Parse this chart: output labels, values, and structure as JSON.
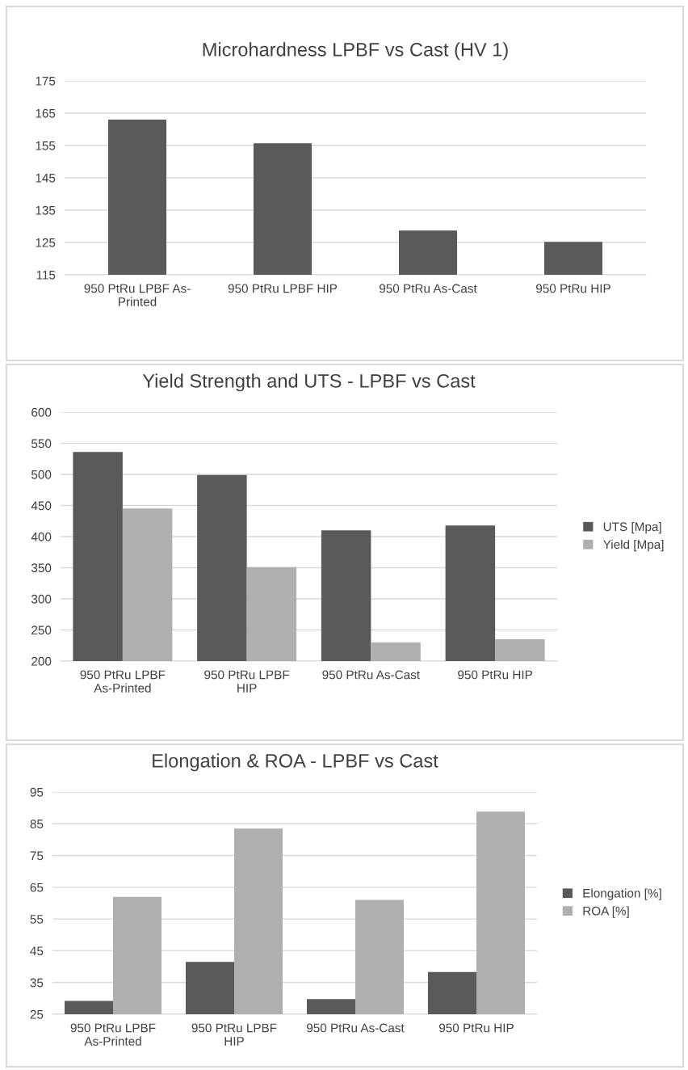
{
  "chart_data": [
    {
      "type": "bar",
      "title": "Microhardness LPBF vs Cast (HV 1)",
      "categories": [
        "950 PtRu LPBF As-\nPrinted",
        "950 PtRu LPBF HIP",
        "950 PtRu As-Cast",
        "950 PtRu HIP"
      ],
      "series": [
        {
          "color": "#5a5a5a",
          "values": [
            163,
            155.7,
            128.7,
            125.2
          ]
        }
      ],
      "ylim": [
        115,
        175
      ],
      "yticks": [
        115,
        125,
        135,
        145,
        155,
        165,
        175
      ],
      "grid": "y",
      "legend": false
    },
    {
      "type": "bar",
      "title": "Yield Strength and UTS - LPBF vs Cast",
      "categories": [
        "950 PtRu LPBF\nAs-Printed",
        "950 PtRu LPBF\nHIP",
        "950 PtRu As-Cast",
        "950 PtRu HIP"
      ],
      "series": [
        {
          "name": "UTS [Mpa]",
          "color": "#5a5a5a",
          "values": [
            536,
            499,
            410,
            418
          ]
        },
        {
          "name": "Yield [Mpa]",
          "color": "#afafaf",
          "values": [
            445,
            351,
            230,
            235
          ]
        }
      ],
      "ylim": [
        200,
        600
      ],
      "yticks": [
        200,
        250,
        300,
        350,
        400,
        450,
        500,
        550,
        600
      ],
      "grid": "y",
      "legend": "right"
    },
    {
      "type": "bar",
      "title": "Elongation & ROA - LPBF vs Cast",
      "categories": [
        "950 PtRu LPBF\nAs-Printed",
        "950 PtRu LPBF\nHIP",
        "950 PtRu As-Cast",
        "950 PtRu HIP"
      ],
      "series": [
        {
          "name": "Elongation [%]",
          "color": "#5a5a5a",
          "values": [
            29.2,
            41.5,
            29.8,
            38.3
          ]
        },
        {
          "name": "ROA [%]",
          "color": "#afafaf",
          "values": [
            62,
            83.5,
            61,
            88.8
          ]
        }
      ],
      "ylim": [
        25,
        95
      ],
      "yticks": [
        25,
        35,
        45,
        55,
        65,
        75,
        85,
        95
      ],
      "grid": "y",
      "legend": "right"
    }
  ]
}
